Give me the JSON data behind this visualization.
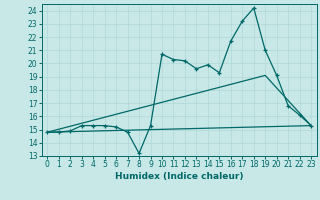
{
  "title": "",
  "xlabel": "Humidex (Indice chaleur)",
  "bg_color": "#c8e8e8",
  "grid_color": "#b0d8d8",
  "line_color": "#006868",
  "xlim": [
    -0.5,
    23.5
  ],
  "ylim": [
    13,
    24.5
  ],
  "xticks": [
    0,
    1,
    2,
    3,
    4,
    5,
    6,
    7,
    8,
    9,
    10,
    11,
    12,
    13,
    14,
    15,
    16,
    17,
    18,
    19,
    20,
    21,
    22,
    23
  ],
  "yticks": [
    13,
    14,
    15,
    16,
    17,
    18,
    19,
    20,
    21,
    22,
    23,
    24
  ],
  "line1_x": [
    0,
    1,
    2,
    3,
    4,
    5,
    6,
    7,
    8,
    9,
    10,
    11,
    12,
    13,
    14,
    15,
    16,
    17,
    18,
    19,
    20,
    21,
    22,
    23
  ],
  "line1_y": [
    14.8,
    14.8,
    14.9,
    15.3,
    15.3,
    15.3,
    15.2,
    14.8,
    13.2,
    15.3,
    20.7,
    20.3,
    20.2,
    19.6,
    19.9,
    19.3,
    21.7,
    23.2,
    24.2,
    21.0,
    19.1,
    16.8,
    16.1,
    15.3
  ],
  "line2_x": [
    0,
    23
  ],
  "line2_y": [
    14.8,
    15.3
  ],
  "line3_x": [
    0,
    19,
    23
  ],
  "line3_y": [
    14.8,
    19.1,
    15.3
  ],
  "xlabel_fontsize": 6.5,
  "tick_fontsize": 5.5
}
